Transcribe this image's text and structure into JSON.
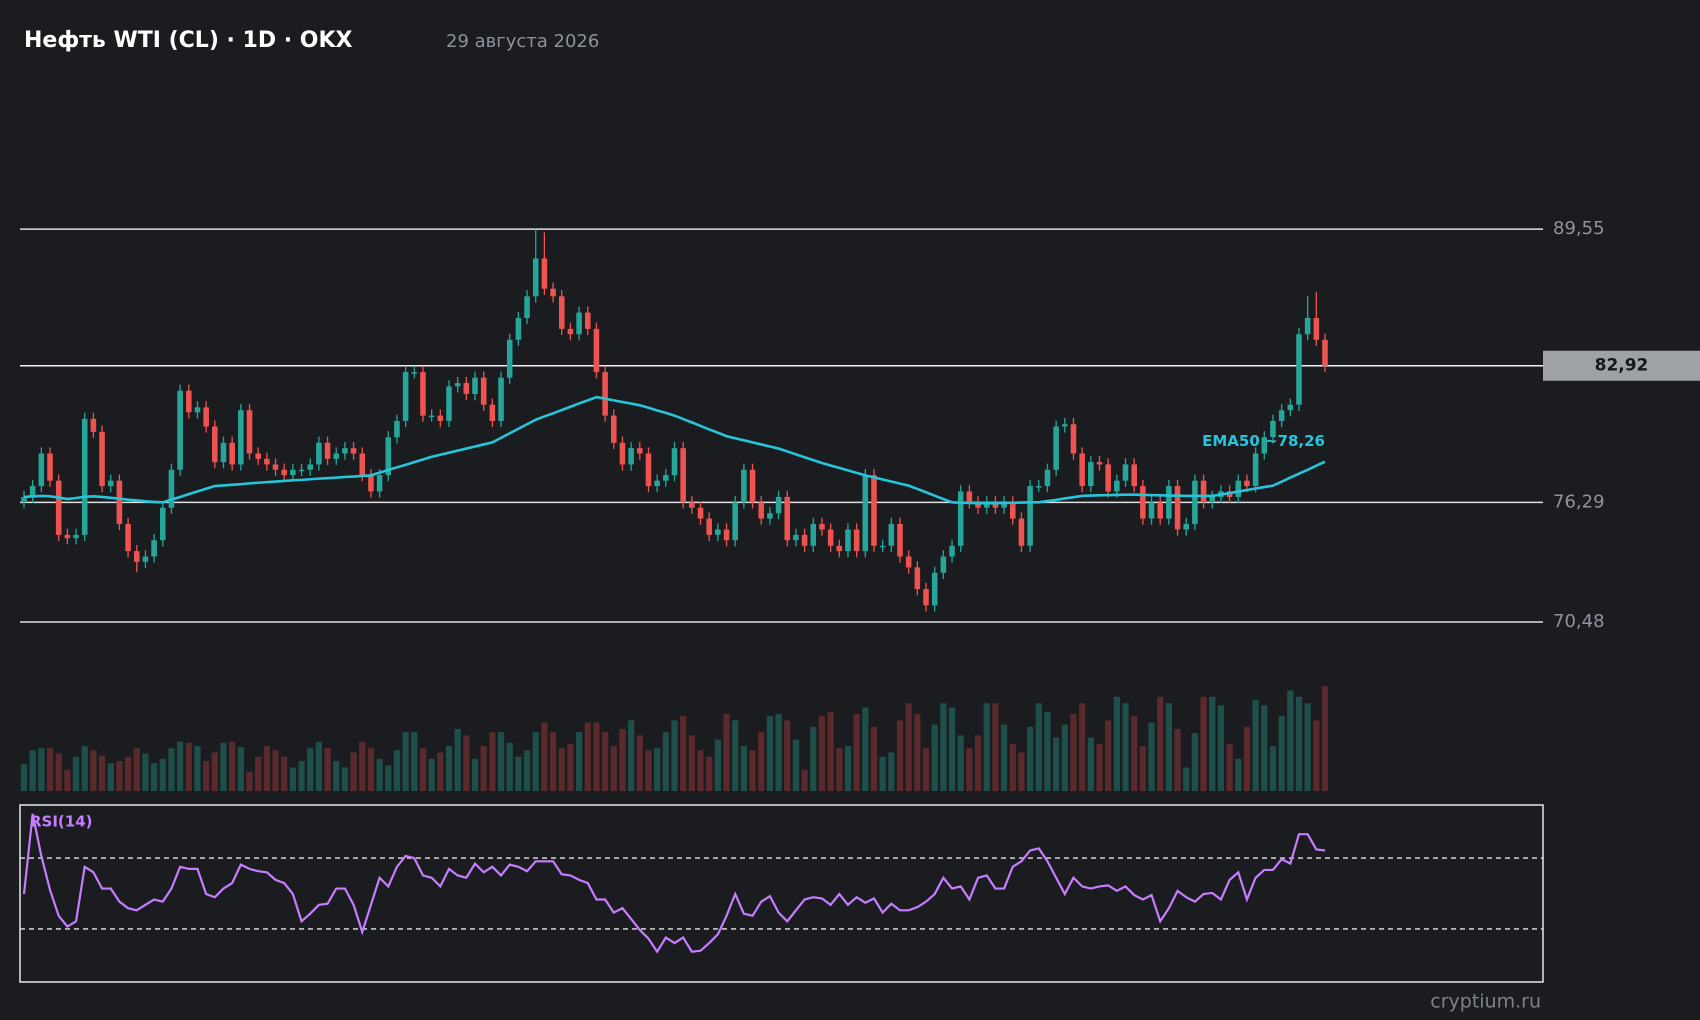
{
  "chart_data": {
    "type": "candlestick",
    "title": "Нефть WTI (CL) · 1D · OKX",
    "subtitle": "29 августа 2026",
    "up_color": "#26a69a",
    "down_color": "#ef5350",
    "ylim": [
      66.5,
      96.5
    ],
    "yticks": [
      {
        "value": 89.55,
        "label": "89,55"
      },
      {
        "value": 76.29,
        "label": "76,29"
      },
      {
        "value": 70.48,
        "label": "70,48"
      }
    ],
    "last_price": {
      "value": 82.92,
      "label": "82,92"
    },
    "open": [
      76.29,
      76.55,
      77.08,
      78.66,
      77.34,
      74.71,
      74.55,
      74.71,
      80.34,
      79.71,
      77.08,
      77.34,
      75.24,
      73.92,
      73.4,
      73.66,
      74.45,
      76.03,
      77.87,
      81.71,
      80.66,
      80.9,
      79.97,
      78.24,
      79.18,
      78.13,
      80.76,
      78.66,
      78.4,
      78.13,
      77.87,
      77.61,
      77.87,
      77.87,
      78.13,
      79.18,
      78.4,
      78.66,
      78.92,
      78.66,
      77.61,
      76.82,
      77.61,
      79.45,
      80.24,
      82.61,
      82.61,
      80.5,
      80.5,
      80.24,
      81.92,
      82.08,
      81.55,
      82.34,
      81.03,
      80.24,
      82.34,
      84.18,
      85.24,
      86.29,
      88.13,
      86.66,
      86.29,
      84.71,
      84.45,
      85.5,
      84.71,
      82.61,
      80.5,
      79.18,
      78.13,
      78.92,
      78.66,
      77.08,
      77.34,
      77.61,
      78.92,
      76.29,
      76.03,
      75.5,
      74.71,
      74.97,
      74.45,
      76.29,
      77.87,
      76.29,
      75.5,
      75.76,
      76.55,
      74.45,
      74.71,
      74.18,
      75.24,
      74.97,
      74.18,
      73.92,
      74.97,
      73.92,
      77.61,
      74.18,
      74.18,
      75.24,
      73.66,
      73.13,
      72.08,
      71.29,
      72.87,
      73.66,
      74.18,
      76.82,
      76.29,
      76.03,
      76.29,
      76.03,
      76.29,
      75.5,
      74.18,
      77.08,
      77.08,
      77.87,
      79.97,
      80.08,
      78.66,
      77.08,
      78.24,
      78.13,
      76.82,
      77.34,
      78.13,
      77.08,
      75.5,
      76.29,
      75.5,
      77.08,
      74.97,
      75.24,
      77.34,
      76.29,
      76.55,
      76.82,
      76.55,
      77.34,
      77.08,
      78.66,
      79.45,
      80.24,
      80.76,
      81.03,
      84.45,
      85.24,
      84.18
    ],
    "high": [
      76.85,
      77.38,
      78.96,
      78.96,
      77.64,
      75.01,
      75.01,
      80.64,
      80.64,
      80.01,
      77.64,
      77.64,
      75.54,
      74.22,
      73.96,
      74.75,
      76.33,
      78.17,
      82.01,
      82.01,
      81.2,
      81.2,
      80.27,
      79.48,
      79.48,
      81.06,
      81.06,
      78.96,
      78.7,
      78.43,
      78.17,
      78.17,
      78.17,
      78.43,
      79.48,
      79.48,
      78.96,
      79.22,
      79.22,
      78.96,
      77.91,
      77.91,
      79.75,
      80.54,
      82.91,
      82.91,
      82.91,
      80.8,
      80.8,
      82.22,
      82.38,
      82.38,
      82.64,
      82.64,
      81.33,
      82.64,
      84.48,
      85.54,
      86.59,
      89.55,
      89.4,
      86.96,
      86.59,
      85.01,
      85.8,
      85.8,
      85.01,
      82.91,
      80.8,
      79.48,
      79.22,
      79.22,
      78.96,
      77.64,
      77.91,
      79.22,
      79.22,
      76.59,
      76.33,
      75.8,
      75.27,
      75.27,
      76.59,
      78.17,
      78.17,
      76.59,
      76.06,
      76.85,
      76.85,
      75.01,
      75.01,
      75.54,
      75.54,
      75.27,
      74.48,
      75.27,
      75.27,
      77.91,
      77.91,
      74.48,
      75.54,
      75.54,
      73.96,
      73.43,
      72.38,
      73.17,
      73.96,
      74.48,
      77.12,
      77.12,
      76.59,
      76.59,
      76.59,
      76.59,
      76.59,
      75.8,
      77.38,
      77.38,
      78.17,
      80.27,
      80.38,
      80.38,
      78.96,
      78.54,
      78.54,
      78.43,
      77.64,
      78.43,
      78.43,
      77.38,
      76.59,
      76.59,
      77.38,
      77.38,
      75.54,
      77.64,
      77.64,
      76.85,
      77.12,
      77.12,
      77.64,
      77.64,
      78.96,
      79.75,
      80.54,
      81.06,
      81.33,
      84.75,
      86.3,
      86.5,
      84.48
    ],
    "low": [
      75.99,
      76.25,
      76.78,
      77.04,
      74.41,
      74.25,
      74.25,
      74.41,
      79.41,
      76.78,
      76.78,
      74.94,
      73.62,
      72.9,
      73.1,
      73.36,
      74.15,
      75.73,
      77.57,
      80.36,
      80.36,
      79.67,
      77.94,
      77.94,
      77.83,
      77.83,
      78.36,
      78.1,
      77.83,
      77.57,
      77.31,
      77.31,
      77.57,
      77.57,
      77.83,
      78.1,
      78.1,
      78.36,
      78.36,
      77.31,
      76.52,
      76.52,
      77.31,
      79.15,
      79.94,
      82.31,
      80.2,
      80.2,
      79.94,
      79.94,
      81.62,
      81.25,
      81.25,
      80.73,
      79.94,
      79.94,
      82.04,
      83.88,
      84.94,
      85.99,
      86.36,
      85.99,
      84.41,
      84.15,
      84.15,
      84.41,
      82.31,
      80.2,
      78.88,
      77.83,
      77.83,
      78.36,
      76.78,
      76.78,
      77.04,
      77.31,
      75.99,
      75.73,
      75.2,
      74.41,
      74.41,
      74.15,
      74.15,
      75.99,
      75.99,
      75.2,
      75.2,
      75.46,
      74.15,
      74.15,
      73.88,
      73.88,
      74.67,
      73.88,
      73.62,
      73.62,
      73.62,
      73.62,
      73.88,
      73.88,
      73.88,
      73.36,
      72.83,
      71.78,
      70.99,
      70.99,
      72.57,
      73.36,
      73.88,
      75.99,
      75.73,
      75.73,
      75.73,
      75.73,
      75.2,
      73.88,
      73.88,
      76.78,
      76.78,
      77.57,
      79.67,
      78.36,
      76.78,
      76.78,
      77.83,
      76.52,
      76.52,
      77.04,
      76.78,
      75.2,
      75.2,
      75.2,
      75.2,
      74.67,
      74.67,
      74.94,
      75.99,
      75.99,
      76.25,
      76.25,
      76.25,
      76.78,
      76.78,
      78.36,
      79.15,
      79.94,
      80.46,
      80.73,
      84.15,
      83.88,
      82.62
    ],
    "close": [
      76.55,
      77.08,
      78.66,
      77.34,
      74.71,
      74.55,
      74.71,
      80.34,
      79.71,
      77.08,
      77.34,
      75.24,
      73.92,
      73.4,
      73.66,
      74.45,
      76.03,
      77.87,
      81.71,
      80.66,
      80.9,
      79.97,
      78.24,
      79.18,
      78.13,
      80.76,
      78.66,
      78.4,
      78.13,
      77.87,
      77.61,
      77.87,
      77.87,
      78.13,
      79.18,
      78.4,
      78.66,
      78.92,
      78.66,
      77.61,
      76.82,
      77.61,
      79.45,
      80.24,
      82.61,
      82.61,
      80.5,
      80.5,
      80.24,
      81.92,
      82.08,
      81.55,
      82.34,
      81.03,
      80.24,
      82.34,
      84.18,
      85.24,
      86.29,
      88.13,
      86.66,
      86.29,
      84.71,
      84.45,
      85.5,
      84.71,
      82.61,
      80.5,
      79.18,
      78.13,
      78.92,
      78.66,
      77.08,
      77.34,
      77.61,
      78.92,
      76.29,
      76.03,
      75.5,
      74.71,
      74.97,
      74.45,
      76.29,
      77.87,
      76.29,
      75.5,
      75.76,
      76.55,
      74.45,
      74.71,
      74.18,
      75.24,
      74.97,
      74.18,
      73.92,
      74.97,
      73.92,
      77.61,
      74.18,
      74.18,
      75.24,
      73.66,
      73.13,
      72.08,
      71.29,
      72.87,
      73.66,
      74.18,
      76.82,
      76.29,
      76.03,
      76.29,
      76.03,
      76.29,
      75.5,
      74.18,
      77.08,
      77.08,
      77.87,
      79.97,
      80.08,
      78.66,
      77.08,
      78.24,
      78.13,
      76.82,
      77.34,
      78.13,
      77.08,
      75.5,
      76.29,
      75.5,
      77.08,
      74.97,
      75.24,
      77.34,
      76.29,
      76.55,
      76.82,
      76.55,
      77.34,
      77.08,
      78.66,
      79.45,
      80.24,
      80.76,
      81.03,
      84.45,
      85.24,
      84.18,
      82.92
    ],
    "ema": {
      "label": "EMA50 ~78,26",
      "color": "#26c6da",
      "values": [
        76.55,
        76.58,
        76.6,
        76.58,
        76.52,
        76.45,
        76.5,
        76.56,
        76.58,
        76.55,
        76.51,
        76.47,
        76.42,
        76.38,
        76.34,
        76.31,
        76.29,
        76.42,
        76.55,
        76.69,
        76.82,
        76.95,
        77.08,
        77.11,
        77.14,
        77.17,
        77.21,
        77.24,
        77.27,
        77.3,
        77.33,
        77.36,
        77.38,
        77.41,
        77.44,
        77.46,
        77.49,
        77.52,
        77.54,
        77.57,
        77.6,
        77.73,
        77.86,
        77.99,
        78.11,
        78.24,
        78.37,
        78.5,
        78.6,
        78.7,
        78.8,
        78.9,
        79.0,
        79.1,
        79.2,
        79.42,
        79.64,
        79.86,
        80.08,
        80.3,
        80.46,
        80.61,
        80.77,
        80.93,
        81.09,
        81.24,
        81.4,
        81.32,
        81.24,
        81.16,
        81.08,
        81.0,
        80.88,
        80.75,
        80.63,
        80.5,
        80.33,
        80.17,
        80.0,
        79.83,
        79.67,
        79.5,
        79.4,
        79.3,
        79.2,
        79.1,
        79.0,
        78.9,
        78.76,
        78.62,
        78.48,
        78.34,
        78.2,
        78.08,
        77.96,
        77.84,
        77.72,
        77.6,
        77.5,
        77.4,
        77.3,
        77.2,
        77.1,
        76.94,
        76.78,
        76.61,
        76.45,
        76.29,
        76.27,
        76.26,
        76.25,
        76.25,
        76.25,
        76.26,
        76.27,
        76.28,
        76.29,
        76.29,
        76.35,
        76.41,
        76.48,
        76.54,
        76.6,
        76.62,
        76.63,
        76.64,
        76.65,
        76.66,
        76.66,
        76.65,
        76.64,
        76.63,
        76.62,
        76.61,
        76.6,
        76.6,
        76.6,
        76.6,
        76.67,
        76.74,
        76.81,
        76.89,
        76.96,
        77.03,
        77.1,
        77.29,
        77.49,
        77.68,
        77.87,
        78.07,
        78.26
      ]
    },
    "volume": {
      "up_color": "#1e4f4b",
      "down_color": "#5a2a2c",
      "values": [
        25,
        38,
        40,
        40,
        35,
        20,
        32,
        42,
        38,
        33,
        26,
        28,
        32,
        40,
        35,
        26,
        30,
        40,
        46,
        45,
        42,
        28,
        36,
        45,
        46,
        41,
        18,
        32,
        42,
        38,
        32,
        22,
        28,
        40,
        46,
        40,
        28,
        22,
        36,
        46,
        40,
        30,
        24,
        38,
        55,
        55,
        40,
        30,
        36,
        42,
        58,
        52,
        30,
        42,
        55,
        55,
        45,
        32,
        38,
        55,
        64,
        55,
        40,
        44,
        55,
        64,
        64,
        55,
        42,
        58,
        66,
        52,
        38,
        40,
        55,
        66,
        70,
        52,
        38,
        32,
        48,
        72,
        66,
        42,
        38,
        55,
        70,
        72,
        66,
        48,
        20,
        60,
        70,
        74,
        40,
        42,
        72,
        78,
        60,
        32,
        36,
        66,
        82,
        72,
        40,
        62,
        82,
        78,
        52,
        40,
        52,
        82,
        82,
        62,
        44,
        36,
        60,
        82,
        74,
        50,
        62,
        72,
        82,
        50,
        44,
        66,
        88,
        82,
        70,
        42,
        64,
        88,
        82,
        58,
        22,
        54,
        88,
        88,
        80,
        44,
        30,
        60,
        85,
        80,
        42,
        70,
        94,
        88,
        82,
        66,
        98
      ]
    },
    "rsi": {
      "label": "RSI(14)",
      "color": "#c77dff",
      "ylim": [
        0,
        100
      ],
      "levels": [
        70,
        30
      ],
      "values": [
        49.7,
        95.0,
        71.2,
        52.0,
        37.4,
        31.3,
        34.3,
        65.1,
        62.0,
        52.8,
        52.8,
        45.4,
        41.7,
        40.5,
        43.6,
        46.6,
        45.4,
        52.8,
        65.1,
        63.9,
        63.9,
        49.7,
        47.9,
        52.8,
        55.9,
        66.3,
        63.9,
        62.6,
        62.0,
        57.7,
        55.9,
        49.7,
        34.3,
        38.6,
        43.6,
        44.2,
        52.8,
        52.8,
        43.6,
        28.2,
        43.6,
        58.9,
        54.0,
        65.1,
        71.2,
        70.0,
        60.2,
        58.9,
        54.0,
        63.9,
        60.2,
        58.9,
        66.9,
        62.0,
        65.1,
        60.2,
        66.3,
        65.1,
        62.6,
        68.2,
        68.2,
        68.2,
        60.8,
        60.2,
        57.7,
        55.9,
        46.6,
        46.6,
        39.2,
        41.7,
        35.6,
        29.4,
        24.5,
        17.1,
        25.1,
        22.0,
        25.1,
        17.1,
        17.7,
        22.0,
        26.9,
        37.4,
        49.7,
        38.6,
        37.4,
        45.4,
        48.5,
        39.2,
        34.3,
        40.5,
        46.6,
        47.9,
        47.2,
        43.6,
        49.7,
        43.6,
        47.9,
        44.8,
        47.2,
        39.2,
        44.2,
        40.5,
        40.5,
        42.3,
        45.4,
        49.7,
        58.9,
        52.8,
        54.0,
        46.6,
        58.9,
        60.2,
        52.8,
        52.8,
        65.1,
        68.2,
        74.3,
        75.5,
        68.2,
        58.9,
        49.7,
        58.9,
        54.0,
        52.8,
        54.0,
        54.6,
        51.5,
        54.0,
        49.1,
        46.6,
        49.1,
        34.3,
        41.7,
        51.5,
        47.9,
        45.4,
        49.7,
        50.3,
        46.6,
        57.7,
        62.0,
        46.6,
        58.9,
        63.3,
        63.3,
        69.4,
        66.9,
        83.5,
        83.5,
        74.9,
        74.3
      ]
    },
    "watermark": "cryptium.ru"
  }
}
